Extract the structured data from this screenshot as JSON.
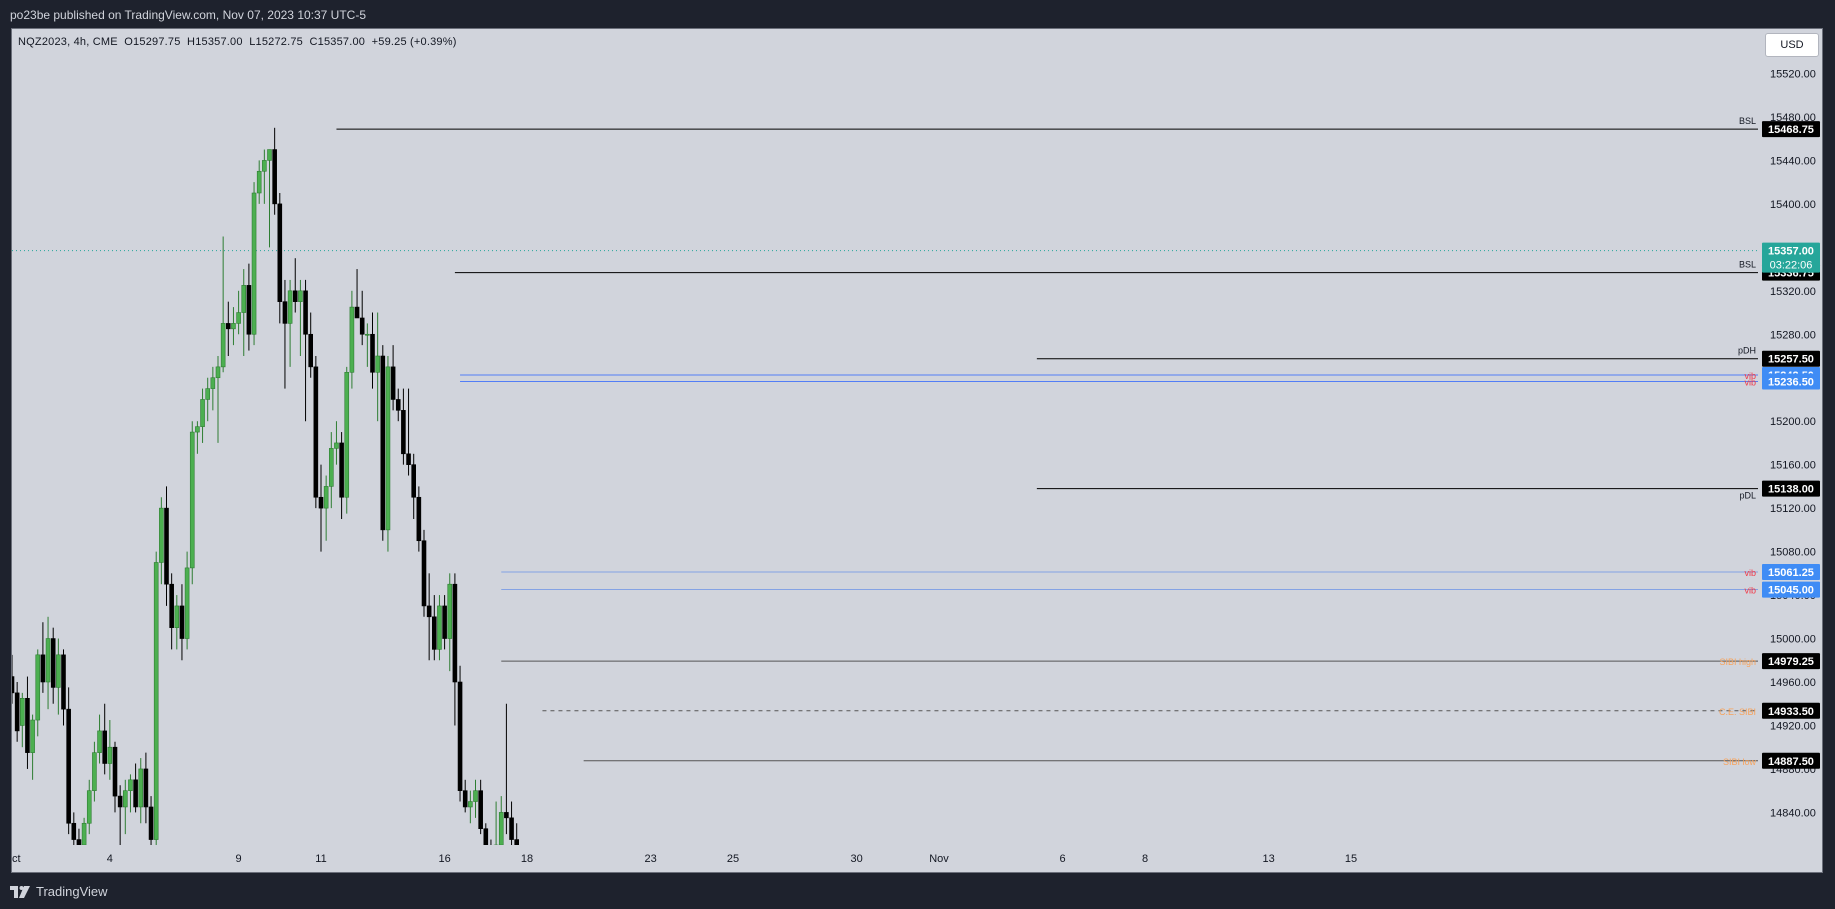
{
  "header": {
    "published": "po23be published on TradingView.com, Nov 07, 2023 10:37 UTC-5"
  },
  "footer": {
    "brand": "TradingView"
  },
  "chart_data": {
    "type": "candlestick",
    "symbol_legend": "NQZ2023, 4h, CME  O15297.75  H15357.00  L15272.75  C15357.00  +59.25 (+0.39%)",
    "currency": "USD",
    "ylim": [
      14810,
      15560
    ],
    "y_ticks": [
      14840,
      14880,
      14920,
      14960,
      15000,
      15040,
      15080,
      15120,
      15160,
      15200,
      15240,
      15280,
      15320,
      15360,
      15400,
      15440,
      15480,
      15520
    ],
    "y_tick_labels": [
      "14840.00",
      "14880.00",
      "14920.00",
      "14960.00",
      "15000.00",
      "15040.00",
      "15080.00",
      "15120.00",
      "15160.00",
      "15200.00",
      "15240.00",
      "15280.00",
      "15320.00",
      "15360.00",
      "15400.00",
      "15440.00",
      "15480.00",
      "15520.00"
    ],
    "x_labels": [
      {
        "label": "ct",
        "i": 0
      },
      {
        "label": "4",
        "i": 19
      },
      {
        "label": "9",
        "i": 44
      },
      {
        "label": "11",
        "i": 60
      },
      {
        "label": "16",
        "i": 84
      },
      {
        "label": "18",
        "i": 100
      },
      {
        "label": "23",
        "i": 124
      },
      {
        "label": "25",
        "i": 140
      },
      {
        "label": "30",
        "i": 164
      },
      {
        "label": "Nov",
        "i": 180
      },
      {
        "label": "6",
        "i": 204
      },
      {
        "label": "8",
        "i": 220
      },
      {
        "label": "13",
        "i": 244
      },
      {
        "label": "15",
        "i": 260
      }
    ],
    "current_price": {
      "value": 15357.0,
      "label": "15357.00",
      "countdown": "03:22:06",
      "color": "#26a69a"
    },
    "levels": [
      {
        "name": "BSL",
        "value": 15468.75,
        "label": "15468.75",
        "from_i": 63,
        "color": "#000000",
        "style": "solid",
        "tag_bg": "#000000"
      },
      {
        "name": "BSL",
        "value": 15336.75,
        "label": "15336.75",
        "from_i": 86,
        "color": "#000000",
        "style": "solid",
        "tag_bg": "#000000"
      },
      {
        "name": "pDH",
        "value": 15257.5,
        "label": "15257.50",
        "from_i": 199,
        "color": "#000000",
        "style": "solid",
        "tag_bg": "#000000"
      },
      {
        "name": "vib",
        "value": 15242.5,
        "label": "15242.50",
        "from_i": 87,
        "color": "#2962ff",
        "style": "thin",
        "tag_bg": "#3f8cf5"
      },
      {
        "name": "vib",
        "value": 15236.5,
        "label": "15236.50",
        "from_i": 87,
        "color": "#2962ff",
        "style": "thin",
        "tag_bg": "#3f8cf5"
      },
      {
        "name": "pDL",
        "value": 15138.0,
        "label": "15138.00",
        "from_i": 199,
        "color": "#000000",
        "style": "solid",
        "tag_bg": "#000000"
      },
      {
        "name": "vib",
        "value": 15061.25,
        "label": "15061.25",
        "from_i": 95,
        "color": "#6a92e6",
        "style": "thin",
        "tag_bg": "#3f8cf5"
      },
      {
        "name": "vib",
        "value": 15045.0,
        "label": "15045.00",
        "from_i": 95,
        "color": "#6a92e6",
        "style": "thin",
        "tag_bg": "#3f8cf5"
      },
      {
        "name": "SIBI high",
        "value": 14979.25,
        "label": "14979.25",
        "from_i": 95,
        "color": "#555555",
        "style": "solid",
        "tag_bg": "#000000"
      },
      {
        "name": "C.E. SIBI",
        "value": 14933.5,
        "label": "14933.50",
        "from_i": 103,
        "color": "#555555",
        "style": "dashed",
        "tag_bg": "#000000"
      },
      {
        "name": "SIBI low",
        "value": 14887.5,
        "label": "14887.50",
        "from_i": 111,
        "color": "#555555",
        "style": "solid",
        "tag_bg": "#000000"
      }
    ],
    "level_tag_colors": {
      "BSL": "#131722",
      "pDH": "#131722",
      "pDL": "#131722",
      "vib": "#f23645",
      "SIBI high": "#f7a35c",
      "C.E. SIBI": "#f7a35c",
      "SIBI low": "#f7a35c"
    },
    "candles": [
      [
        14965,
        14985,
        14940,
        14950
      ],
      [
        14950,
        14960,
        14905,
        14915
      ],
      [
        14920,
        14950,
        14900,
        14945
      ],
      [
        14945,
        14965,
        14880,
        14895
      ],
      [
        14895,
        14930,
        14870,
        14925
      ],
      [
        14925,
        14990,
        14910,
        14985
      ],
      [
        14985,
        15015,
        14950,
        14960
      ],
      [
        14960,
        15020,
        14935,
        15000
      ],
      [
        15000,
        15010,
        14940,
        14955
      ],
      [
        14955,
        15000,
        14930,
        14985
      ],
      [
        14985,
        14990,
        14920,
        14935
      ],
      [
        14935,
        14955,
        14820,
        14830
      ],
      [
        14830,
        14840,
        14810,
        14815
      ],
      [
        14815,
        14825,
        14805,
        14810
      ],
      [
        14810,
        14835,
        14800,
        14830
      ],
      [
        14830,
        14870,
        14820,
        14860
      ],
      [
        14860,
        14905,
        14850,
        14895
      ],
      [
        14895,
        14930,
        14885,
        14915
      ],
      [
        14915,
        14940,
        14875,
        14885
      ],
      [
        14885,
        14925,
        14870,
        14900
      ],
      [
        14900,
        14905,
        14840,
        14855
      ],
      [
        14855,
        14865,
        14810,
        14845
      ],
      [
        14845,
        14870,
        14820,
        14860
      ],
      [
        14860,
        14875,
        14840,
        14870
      ],
      [
        14870,
        14885,
        14840,
        14845
      ],
      [
        14845,
        14890,
        14830,
        14880
      ],
      [
        14880,
        14895,
        14830,
        14845
      ],
      [
        14845,
        14855,
        14810,
        14815
      ],
      [
        14815,
        15080,
        14810,
        15070
      ],
      [
        15070,
        15130,
        15050,
        15120
      ],
      [
        15120,
        15140,
        15030,
        15050
      ],
      [
        15050,
        15060,
        14990,
        15010
      ],
      [
        15010,
        15040,
        14990,
        15030
      ],
      [
        15030,
        15050,
        14980,
        15000
      ],
      [
        15000,
        15080,
        14990,
        15065
      ],
      [
        15065,
        15200,
        15050,
        15190
      ],
      [
        15190,
        15200,
        15170,
        15195
      ],
      [
        15195,
        15230,
        15180,
        15220
      ],
      [
        15220,
        15240,
        15200,
        15230
      ],
      [
        15230,
        15250,
        15210,
        15240
      ],
      [
        15240,
        15260,
        15180,
        15250
      ],
      [
        15250,
        15370,
        15245,
        15290
      ],
      [
        15290,
        15310,
        15260,
        15285
      ],
      [
        15285,
        15305,
        15270,
        15290
      ],
      [
        15290,
        15320,
        15280,
        15300
      ],
      [
        15300,
        15340,
        15260,
        15325
      ],
      [
        15325,
        15345,
        15265,
        15280
      ],
      [
        15280,
        15420,
        15270,
        15410
      ],
      [
        15410,
        15440,
        15400,
        15430
      ],
      [
        15430,
        15450,
        15400,
        15440
      ],
      [
        15440,
        15450,
        15360,
        15450
      ],
      [
        15450,
        15470,
        15390,
        15400
      ],
      [
        15400,
        15410,
        15290,
        15310
      ],
      [
        15310,
        15330,
        15230,
        15290
      ],
      [
        15290,
        15330,
        15250,
        15320
      ],
      [
        15320,
        15350,
        15300,
        15310
      ],
      [
        15310,
        15330,
        15260,
        15320
      ],
      [
        15320,
        15330,
        15200,
        15280
      ],
      [
        15280,
        15300,
        15240,
        15250
      ],
      [
        15250,
        15260,
        15120,
        15130
      ],
      [
        15130,
        15160,
        15080,
        15120
      ],
      [
        15120,
        15150,
        15090,
        15140
      ],
      [
        15140,
        15190,
        15120,
        15175
      ],
      [
        15175,
        15200,
        15160,
        15180
      ],
      [
        15180,
        15190,
        15110,
        15130
      ],
      [
        15130,
        15250,
        15115,
        15245
      ],
      [
        15245,
        15320,
        15230,
        15305
      ],
      [
        15305,
        15340,
        15295,
        15295
      ],
      [
        15295,
        15320,
        15270,
        15280
      ],
      [
        15280,
        15290,
        15250,
        15280
      ],
      [
        15280,
        15300,
        15230,
        15245
      ],
      [
        15245,
        15300,
        15200,
        15260
      ],
      [
        15260,
        15270,
        15090,
        15100
      ],
      [
        15100,
        15260,
        15080,
        15250
      ],
      [
        15250,
        15270,
        15210,
        15220
      ],
      [
        15220,
        15230,
        15200,
        15210
      ],
      [
        15210,
        15230,
        15160,
        15170
      ],
      [
        15170,
        15230,
        15150,
        15160
      ],
      [
        15160,
        15170,
        15110,
        15130
      ],
      [
        15130,
        15140,
        15080,
        15090
      ],
      [
        15090,
        15100,
        15020,
        15030
      ],
      [
        15030,
        15060,
        14980,
        15020
      ],
      [
        15020,
        15040,
        14980,
        14990
      ],
      [
        14990,
        15040,
        14980,
        15030
      ],
      [
        15030,
        15040,
        14990,
        15000
      ],
      [
        15000,
        15060,
        14970,
        15050
      ],
      [
        15050,
        15060,
        14920,
        14960
      ],
      [
        14960,
        14975,
        14850,
        14860
      ],
      [
        14860,
        14870,
        14840,
        14845
      ],
      [
        14845,
        14860,
        14830,
        14850
      ],
      [
        14850,
        14870,
        14835,
        14860
      ],
      [
        14860,
        14870,
        14820,
        14825
      ],
      [
        14825,
        14830,
        14800,
        14805
      ],
      [
        14805,
        14815,
        14795,
        14800
      ],
      [
        14800,
        14850,
        14795,
        14810
      ],
      [
        14810,
        14855,
        14800,
        14840
      ],
      [
        14840,
        14940,
        14820,
        14835
      ],
      [
        14835,
        14850,
        14810,
        14815
      ],
      [
        14815,
        14830,
        14805,
        14810
      ]
    ]
  }
}
